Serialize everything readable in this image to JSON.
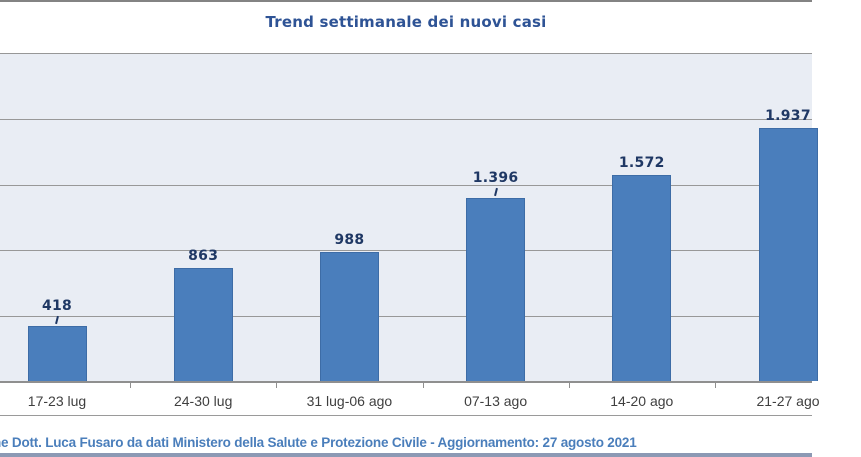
{
  "chart_data": {
    "type": "bar",
    "title": "Trend settimanale dei nuovi casi",
    "categories": [
      "17-23 lug",
      "24-30 lug",
      "31 lug-06 ago",
      "07-13 ago",
      "14-20 ago",
      "21-27 ago"
    ],
    "values": [
      418,
      863,
      988,
      1396,
      1572,
      1937
    ],
    "value_labels": [
      "418",
      "863",
      "988",
      "1.396",
      "1.572",
      "1.937"
    ],
    "leader_lines": [
      true,
      false,
      false,
      true,
      false,
      false
    ],
    "xlabel": "",
    "ylabel": "",
    "ylim": [
      0,
      2500
    ],
    "gridline_step": 500,
    "grid": "horizontal",
    "legend_position": "none",
    "colors": {
      "bar_fill": "#4a7ebc",
      "bar_border": "#3d6ca6",
      "value_label": "#1f3864",
      "title": "#2e5395",
      "plot_background": "#e9edf4",
      "gridline": "#989898"
    }
  },
  "footer": {
    "text": "ne Dott. Luca Fusaro da dati Ministero della Salute e Protezione Civile - Aggiornamento: 27 agosto 2021",
    "color": "#4a7ebb"
  }
}
